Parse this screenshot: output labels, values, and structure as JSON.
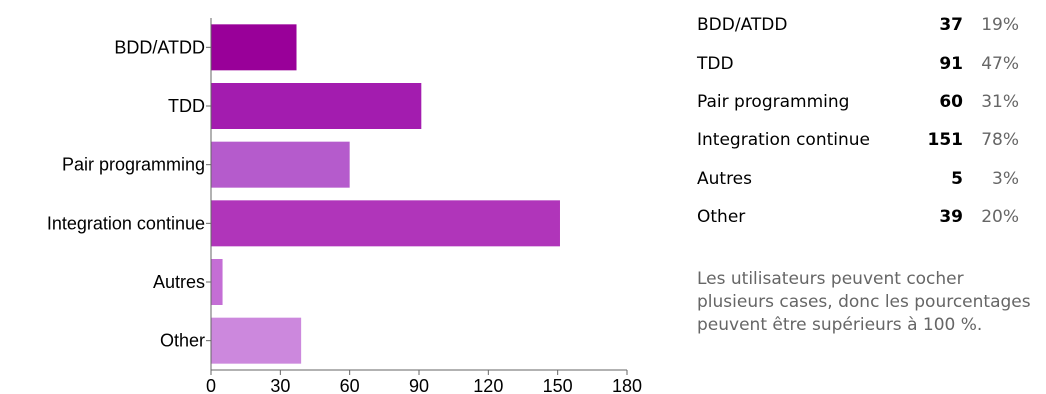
{
  "chart_data": {
    "type": "bar",
    "orientation": "horizontal",
    "categories": [
      "BDD/ATDD",
      "TDD",
      "Pair programming",
      "Integration continue",
      "Autres",
      "Other"
    ],
    "values": [
      37,
      91,
      60,
      151,
      5,
      39
    ],
    "colors": [
      "#990099",
      "#a31caf",
      "#b55bcc",
      "#b035ba",
      "#c46ed5",
      "#cc88dd"
    ],
    "xlim": [
      0,
      180
    ],
    "xticks": [
      "0",
      "30",
      "60",
      "90",
      "120",
      "150",
      "180"
    ],
    "grid": false
  },
  "summary": {
    "rows": [
      {
        "label": "BDD/ATDD",
        "count": "37",
        "percent": "19%"
      },
      {
        "label": "TDD",
        "count": "91",
        "percent": "47%"
      },
      {
        "label": "Pair programming",
        "count": "60",
        "percent": "31%"
      },
      {
        "label": "Integration continue",
        "count": "151",
        "percent": "78%"
      },
      {
        "label": "Autres",
        "count": "5",
        "percent": "3%"
      },
      {
        "label": "Other",
        "count": "39",
        "percent": "20%"
      }
    ],
    "note": "Les utilisateurs peuvent cocher plusieurs cases, donc les pourcentages peuvent être supérieurs à 100 %."
  }
}
